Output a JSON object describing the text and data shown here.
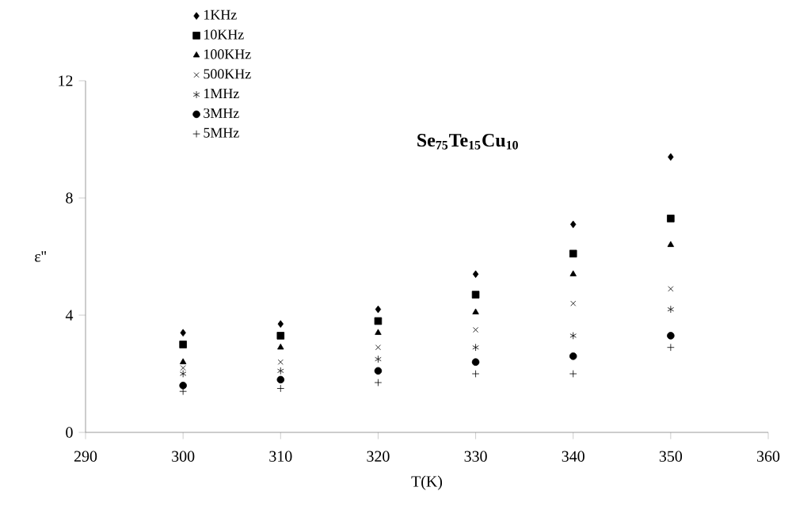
{
  "chart_data": {
    "type": "scatter",
    "title": "Se$_{75}$Te$_{15}$Cu$_{10}$",
    "xlabel": "T(K)",
    "ylabel": "ε''",
    "x": [
      300,
      310,
      320,
      330,
      340,
      350
    ],
    "xlim": [
      290,
      360
    ],
    "xticks": [
      290,
      300,
      310,
      320,
      330,
      340,
      350,
      360
    ],
    "ylim": [
      0,
      12
    ],
    "yticks": [
      0,
      4,
      8,
      12
    ],
    "grid": false,
    "legend": "top left",
    "series": [
      {
        "name": "1KHz",
        "color": "#000000",
        "marker": "diamond",
        "values": [
          3.4,
          3.7,
          4.2,
          5.4,
          7.1,
          9.4
        ]
      },
      {
        "name": "10KHz",
        "color": "#000000",
        "marker": "square",
        "values": [
          3.0,
          3.3,
          3.8,
          4.7,
          6.1,
          7.3
        ]
      },
      {
        "name": "100KHz",
        "color": "#000000",
        "marker": "triangle",
        "values": [
          2.4,
          2.9,
          3.4,
          4.1,
          5.4,
          6.4
        ]
      },
      {
        "name": "500KHz",
        "color": "#000000",
        "marker": "cross",
        "values": [
          2.2,
          2.4,
          2.9,
          3.5,
          4.4,
          4.9
        ]
      },
      {
        "name": "1MHz",
        "color": "#000000",
        "values": [
          2.0,
          2.1,
          2.5,
          2.9,
          3.3,
          4.2
        ]
      },
      {
        "name": "3MHz",
        "color": "#000000",
        "marker": "circle",
        "values": [
          1.6,
          1.8,
          2.1,
          2.4,
          2.6,
          3.3
        ]
      },
      {
        "name": "5MHz",
        "color": "#000000",
        "marker": "plus",
        "values": [
          1.4,
          1.5,
          1.7,
          2.0,
          2.0,
          2.9
        ]
      }
    ]
  }
}
